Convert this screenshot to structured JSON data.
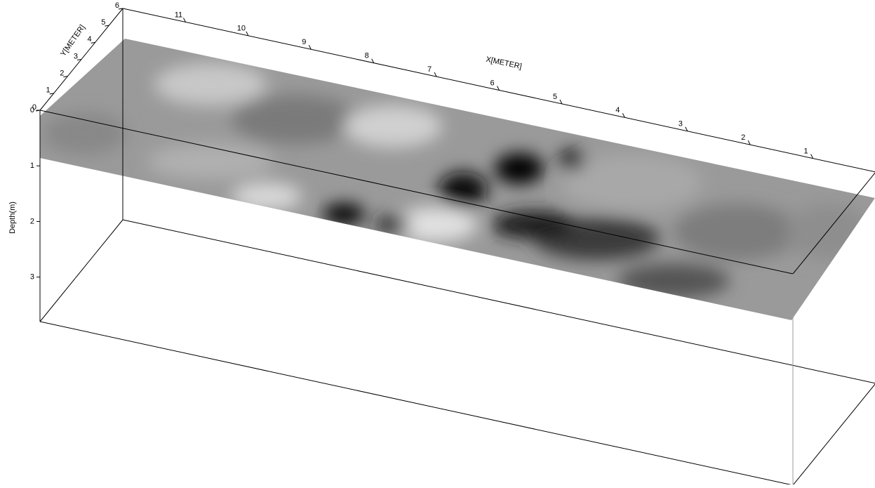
{
  "chart_data": {
    "type": "box3d",
    "x_label": "X[METER]",
    "y_label": "Y[METER]",
    "z_label": "Depth(m)",
    "xlim": [
      0,
      12
    ],
    "xticks": [
      1,
      2,
      3,
      4,
      5,
      6,
      7,
      8,
      9,
      10,
      11
    ],
    "ylim": [
      0,
      6
    ],
    "yticks": [
      0,
      1,
      2,
      3,
      4,
      5,
      6
    ],
    "zlim": [
      0,
      3.8
    ],
    "zticks": [
      0,
      1,
      2,
      3
    ]
  }
}
